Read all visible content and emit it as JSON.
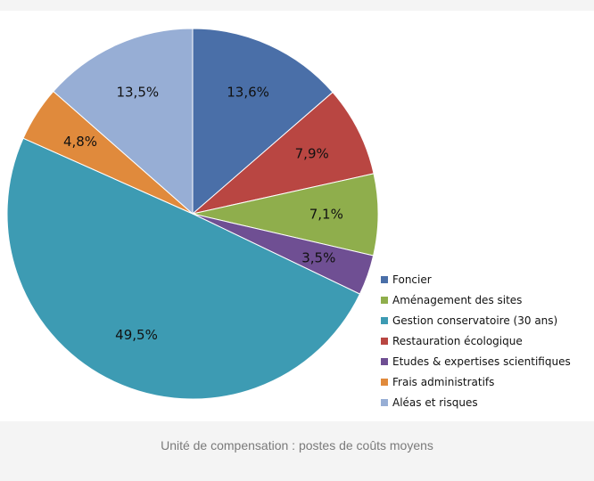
{
  "caption": "Unité de compensation : postes de coûts moyens",
  "chart_data": {
    "type": "pie",
    "title": "",
    "legend_position": "right",
    "start_angle": "top, clockwise",
    "slices": [
      {
        "label": "Foncier",
        "value": 13.6,
        "value_label": "13,6%",
        "color": "#4a6fa8"
      },
      {
        "label": "Restauration écologique",
        "value": 7.9,
        "value_label": "7,9%",
        "color": "#b94642"
      },
      {
        "label": "Aménagement des sites",
        "value": 7.1,
        "value_label": "7,1%",
        "color": "#8fae4c"
      },
      {
        "label": "Etudes & expertises scientifiques",
        "value": 3.5,
        "value_label": "3,5%",
        "color": "#6f4f93"
      },
      {
        "label": "Gestion conservatoire (30 ans)",
        "value": 49.5,
        "value_label": "49,5%",
        "color": "#3d9bb3"
      },
      {
        "label": "Frais administratifs",
        "value": 4.8,
        "value_label": "4,8%",
        "color": "#e08a3c"
      },
      {
        "label": "Aléas et risques",
        "value": 13.5,
        "value_label": "13,5%",
        "color": "#97aed5"
      }
    ],
    "legend": [
      {
        "label": "Foncier",
        "color": "#4a6fa8"
      },
      {
        "label": "Aménagement des sites",
        "color": "#8fae4c"
      },
      {
        "label": "Gestion conservatoire (30 ans)",
        "color": "#3d9bb3"
      },
      {
        "label": "Restauration écologique",
        "color": "#b94642"
      },
      {
        "label": "Etudes & expertises scientifiques",
        "color": "#6f4f93"
      },
      {
        "label": "Frais administratifs",
        "color": "#e08a3c"
      },
      {
        "label": "Aléas et risques",
        "color": "#97aed5"
      }
    ]
  }
}
